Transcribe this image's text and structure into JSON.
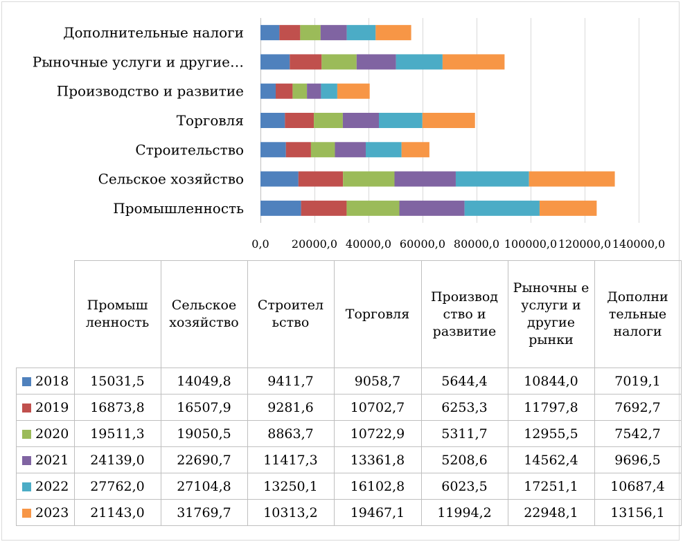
{
  "chart_data": {
    "type": "bar",
    "orientation": "horizontal",
    "stacked": true,
    "categories": [
      "Промышленность",
      "Сельское хозяйство",
      "Строительство",
      "Торговля",
      "Производство и развитие",
      "Рыночные услуги и другие рынки",
      "Дополнительные налоги"
    ],
    "category_labels": [
      "Промышленность",
      "Сельское хозяйство",
      "Строительство",
      "Торговля",
      "Производство и развитие",
      "Рыночные услуги и другие…",
      "Дополнительные налоги"
    ],
    "table_headers": [
      "Промыш ленность",
      "Сельское хозяйство",
      "Строител ьство",
      "Торговля",
      "Производ ство и развитие",
      "Рыночны е услуги и другие рынки",
      "Дополни тельные налоги"
    ],
    "series": [
      {
        "name": "2018",
        "color": "#4f81bd",
        "values": [
          15031.5,
          14049.8,
          9411.7,
          9058.7,
          5644.4,
          10844.0,
          7019.1
        ],
        "labels": [
          "15031,5",
          "14049,8",
          "9411,7",
          "9058,7",
          "5644,4",
          "10844,0",
          "7019,1"
        ]
      },
      {
        "name": "2019",
        "color": "#c0504d",
        "values": [
          16873.8,
          16507.9,
          9281.6,
          10702.7,
          6253.3,
          11797.8,
          7692.7
        ],
        "labels": [
          "16873,8",
          "16507,9",
          "9281,6",
          "10702,7",
          "6253,3",
          "11797,8",
          "7692,7"
        ]
      },
      {
        "name": "2020",
        "color": "#9bbb59",
        "values": [
          19511.3,
          19050.5,
          8863.7,
          10722.9,
          5311.7,
          12955.5,
          7542.7
        ],
        "labels": [
          "19511,3",
          "19050,5",
          "8863,7",
          "10722,9",
          "5311,7",
          "12955,5",
          "7542,7"
        ]
      },
      {
        "name": "2021",
        "color": "#8064a2",
        "values": [
          24139.0,
          22690.7,
          11417.3,
          13361.8,
          5208.6,
          14562.4,
          9696.5
        ],
        "labels": [
          "24139,0",
          "22690,7",
          "11417,3",
          "13361,8",
          "5208,6",
          "14562,4",
          "9696,5"
        ]
      },
      {
        "name": "2022",
        "color": "#4bacc6",
        "values": [
          27762.0,
          27104.8,
          13250.1,
          16102.8,
          6023.5,
          17251.1,
          10687.4
        ],
        "labels": [
          "27762,0",
          "27104,8",
          "13250,1",
          "16102,8",
          "6023,5",
          "17251,1",
          "10687,4"
        ]
      },
      {
        "name": "2023",
        "color": "#f79646",
        "values": [
          21143.0,
          31769.7,
          10313.2,
          19467.1,
          11994.2,
          22948.1,
          13156.1
        ],
        "labels": [
          "21143,0",
          "31769,7",
          "10313,2",
          "19467,1",
          "11994,2",
          "22948,1",
          "13156,1"
        ]
      }
    ],
    "xlim": [
      0,
      140000
    ],
    "x_ticks": [
      0,
      20000,
      40000,
      60000,
      80000,
      100000,
      120000,
      140000
    ],
    "x_tick_labels": [
      "0,0",
      "20000,0",
      "40000,0",
      "60000,0",
      "80000,0",
      "100000,0",
      "120000,0",
      "140000,0"
    ],
    "grid": "vertical",
    "legend": "data-table-below"
  }
}
